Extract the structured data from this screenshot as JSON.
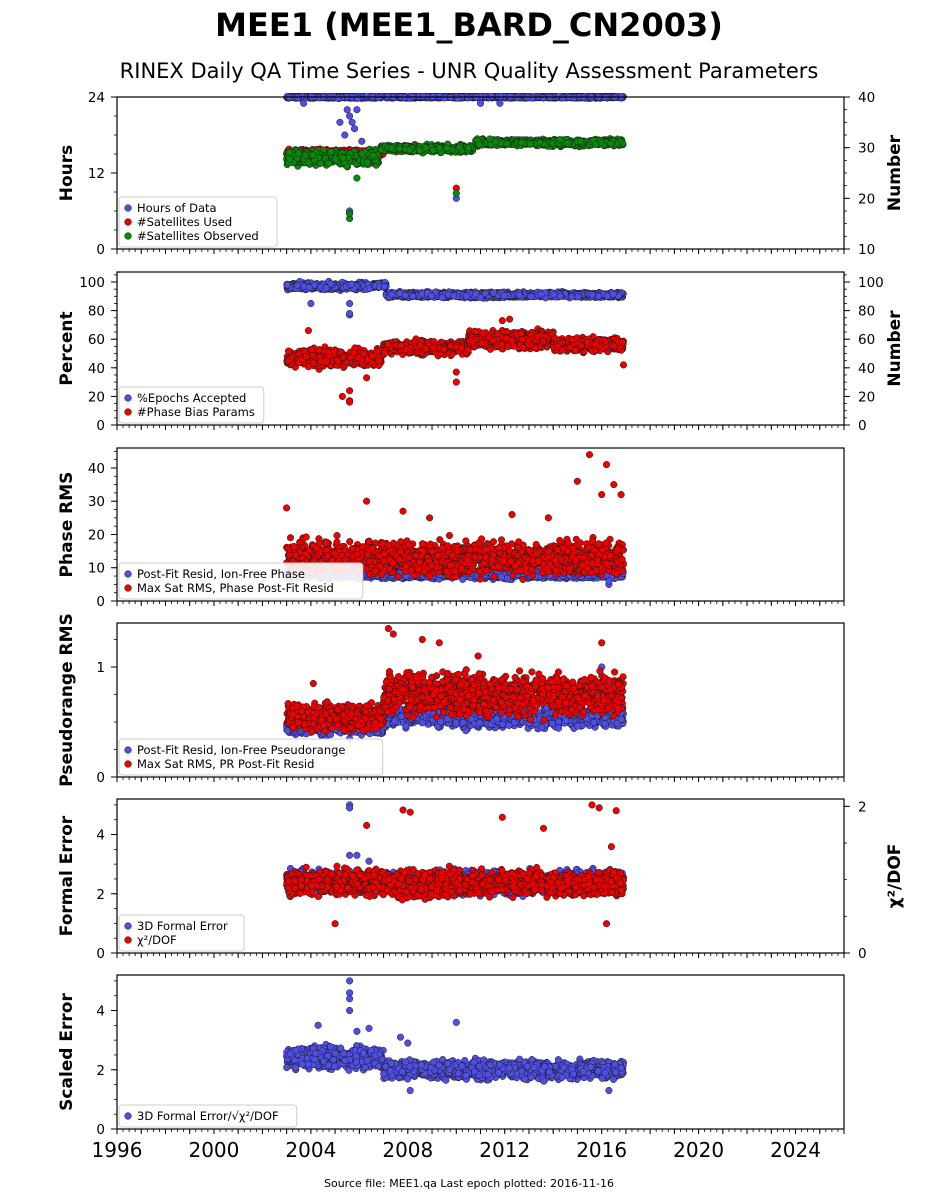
{
  "title": "MEE1 (MEE1_BARD_CN2003)",
  "subtitle": "RINEX Daily QA Time Series - UNR Quality Assessment Parameters",
  "footer": "Source file: MEE1.qa Last epoch plotted: 2016-11-16",
  "colors": {
    "blue": "#4f4fe8",
    "red": "#ee0000",
    "green": "#078a07",
    "edge": "#1a1a1a"
  },
  "x_axis": {
    "range": [
      1996,
      2026
    ],
    "ticks": [
      1996,
      2000,
      2004,
      2008,
      2012,
      2016,
      2020,
      2024
    ],
    "tick_labels": [
      "1996",
      "2000",
      "2004",
      "2008",
      "2012",
      "2016",
      "2020",
      "2024"
    ]
  },
  "chart_data": [
    {
      "type": "scatter",
      "ylabel": "Hours",
      "ylabel_right": "Number",
      "ylim": [
        0,
        24
      ],
      "yticks": [
        0,
        12,
        24
      ],
      "ylim_right": [
        10,
        40
      ],
      "yticks_right": [
        10,
        20,
        30,
        40
      ],
      "legend_loc": "lower-left",
      "series": [
        {
          "name": "Hours of Data",
          "color": "blue",
          "axis": "left",
          "segments": [
            {
              "x": [
                2003.0,
                2007.0
              ],
              "y": 24,
              "noise": 0.15
            },
            {
              "x": [
                2007.1,
                2016.9
              ],
              "y": 24,
              "noise": 0.15
            }
          ],
          "outliers": [
            [
              2005.5,
              22
            ],
            [
              2005.6,
              21
            ],
            [
              2005.4,
              18
            ],
            [
              2005.7,
              20
            ],
            [
              2005.6,
              6
            ],
            [
              2005.9,
              22
            ],
            [
              2005.8,
              19
            ],
            [
              2005.2,
              20
            ],
            [
              2006.1,
              17
            ],
            [
              2010.0,
              8
            ],
            [
              2011.0,
              23
            ],
            [
              2011.8,
              23
            ],
            [
              2003.7,
              23
            ]
          ]
        },
        {
          "name": "#Satellites Used",
          "color": "red",
          "axis": "right",
          "segments": [
            {
              "x": [
                2003.0,
                2007.0
              ],
              "y": 29,
              "noise": 0.5
            }
          ],
          "outliers": [
            [
              2005.6,
              17
            ],
            [
              2010.0,
              22
            ]
          ]
        },
        {
          "name": "#Satellites Observed",
          "color": "green",
          "axis": "right",
          "segments": [
            {
              "x": [
                2003.0,
                2006.8
              ],
              "y": 28,
              "noise": 1.2
            },
            {
              "x": [
                2006.9,
                2010.7
              ],
              "y": 29.8,
              "noise": 0.6
            },
            {
              "x": [
                2010.8,
                2016.9
              ],
              "y": 31,
              "noise": 0.5
            }
          ],
          "outliers": [
            [
              2005.6,
              16
            ],
            [
              2005.6,
              17
            ],
            [
              2010.0,
              21
            ],
            [
              2005.9,
              24
            ]
          ]
        }
      ]
    },
    {
      "type": "scatter",
      "ylabel": "Percent",
      "ylabel_right": "Number",
      "ylim": [
        0,
        107
      ],
      "yticks": [
        0,
        20,
        40,
        60,
        80,
        100
      ],
      "ylim_right": [
        0,
        107
      ],
      "yticks_right": [
        0,
        20,
        40,
        60,
        80,
        100
      ],
      "legend_loc": "lower-left",
      "series": [
        {
          "name": "%Epochs Accepted",
          "color": "blue",
          "segments": [
            {
              "x": [
                2003.0,
                2006.6
              ],
              "y": 97,
              "noise": 2.0
            },
            {
              "x": [
                2006.6,
                2007.1
              ],
              "y": 98,
              "noise": 1.5
            },
            {
              "x": [
                2007.1,
                2016.9
              ],
              "y": 91,
              "noise": 1.5
            }
          ],
          "outliers": [
            [
              2005.6,
              77
            ],
            [
              2005.6,
              78
            ],
            [
              2005.6,
              85
            ],
            [
              2004.0,
              85
            ]
          ]
        },
        {
          "name": "#Phase Bias Params",
          "color": "red",
          "segments": [
            {
              "x": [
                2003.0,
                2006.9
              ],
              "y": 47,
              "noise": 5.0
            },
            {
              "x": [
                2007.0,
                2010.5
              ],
              "y": 54,
              "noise": 4.0
            },
            {
              "x": [
                2010.5,
                2014.0
              ],
              "y": 60,
              "noise": 5.0
            },
            {
              "x": [
                2014.0,
                2016.9
              ],
              "y": 56,
              "noise": 4.0
            }
          ],
          "outliers": [
            [
              2005.6,
              17
            ],
            [
              2005.6,
              16
            ],
            [
              2005.6,
              24
            ],
            [
              2010.0,
              30
            ],
            [
              2010.0,
              37
            ],
            [
              2003.9,
              66
            ],
            [
              2011.9,
              73
            ],
            [
              2012.2,
              74
            ],
            [
              2016.9,
              42
            ],
            [
              2006.3,
              33
            ],
            [
              2005.3,
              20
            ]
          ]
        }
      ]
    },
    {
      "type": "scatter",
      "ylabel": "Phase RMS",
      "ylim": [
        0,
        46
      ],
      "yticks": [
        0,
        10,
        20,
        30,
        40
      ],
      "legend_loc": "lower-left",
      "series": [
        {
          "name": "Post-Fit Resid, Ion-Free Phase",
          "color": "blue",
          "segments": [
            {
              "x": [
                2003.0,
                2016.9
              ],
              "y": 8,
              "noise": 1.0
            }
          ],
          "outliers": [
            [
              2016.3,
              5
            ],
            [
              2016.3,
              6
            ]
          ]
        },
        {
          "name": "Max Sat RMS, Phase Post-Fit Resid",
          "color": "red",
          "segments": [
            {
              "x": [
                2003.0,
                2016.9
              ],
              "y": 13,
              "noise": 4.0
            }
          ],
          "outliers": [
            [
              2003.0,
              28
            ],
            [
              2006.3,
              30
            ],
            [
              2007.8,
              27
            ],
            [
              2008.9,
              25
            ],
            [
              2015.5,
              44
            ],
            [
              2016.2,
              41
            ],
            [
              2015.0,
              36
            ],
            [
              2016.5,
              35
            ],
            [
              2016.8,
              32
            ],
            [
              2016.0,
              32
            ],
            [
              2013.8,
              25
            ],
            [
              2012.3,
              26
            ]
          ]
        }
      ]
    },
    {
      "type": "scatter",
      "ylabel": "Pseudorange RMS",
      "ylim": [
        0,
        1.4
      ],
      "yticks": [
        0,
        1
      ],
      "yticks_labels": [
        "0",
        "1"
      ],
      "legend_loc": "lower-left",
      "series": [
        {
          "name": "Post-Fit Resid, Ion-Free Pseudorange",
          "color": "blue",
          "segments": [
            {
              "x": [
                2003.0,
                2007.0
              ],
              "y": 0.45,
              "noise": 0.05
            },
            {
              "x": [
                2007.0,
                2016.9
              ],
              "y": 0.55,
              "noise": 0.08
            }
          ],
          "outliers": [
            [
              2007.5,
              0.74
            ],
            [
              2016.0,
              1.0
            ],
            [
              2005.6,
              0.35
            ]
          ]
        },
        {
          "name": "Max Sat RMS, PR Post-Fit Resid",
          "color": "red",
          "segments": [
            {
              "x": [
                2003.0,
                2007.0
              ],
              "y": 0.55,
              "noise": 0.1
            },
            {
              "x": [
                2007.0,
                2016.9
              ],
              "y": 0.75,
              "noise": 0.15
            }
          ],
          "outliers": [
            [
              2007.2,
              1.35
            ],
            [
              2007.4,
              1.3
            ],
            [
              2008.6,
              1.25
            ],
            [
              2009.3,
              1.22
            ],
            [
              2016.0,
              1.22
            ],
            [
              2010.9,
              1.1
            ],
            [
              2004.1,
              0.85
            ]
          ]
        }
      ]
    },
    {
      "type": "scatter",
      "ylabel": "Formal Error",
      "ylabel_right": "χ²/DOF",
      "ylim": [
        0,
        5.2
      ],
      "yticks": [
        0,
        2,
        4
      ],
      "ylim_right": [
        0,
        2.1
      ],
      "yticks_right": [
        0,
        2
      ],
      "legend_loc": "lower-left",
      "series": [
        {
          "name": "3D Formal Error",
          "color": "blue",
          "axis": "left",
          "segments": [
            {
              "x": [
                2003.0,
                2016.9
              ],
              "y": 2.4,
              "noise": 0.3
            }
          ],
          "outliers": [
            [
              2005.6,
              5.0
            ],
            [
              2005.6,
              4.9
            ],
            [
              2005.6,
              3.3
            ],
            [
              2005.9,
              3.3
            ],
            [
              2006.4,
              3.1
            ]
          ]
        },
        {
          "name": "χ²/DOF",
          "color": "red",
          "axis": "right",
          "segments": [
            {
              "x": [
                2003.0,
                2016.9
              ],
              "y": 0.95,
              "noise": 0.14
            }
          ],
          "outliers": [
            [
              2006.3,
              1.74
            ],
            [
              2007.8,
              1.95
            ],
            [
              2008.1,
              1.92
            ],
            [
              2011.9,
              1.85
            ],
            [
              2013.6,
              1.7
            ],
            [
              2015.6,
              2.02
            ],
            [
              2015.9,
              1.98
            ],
            [
              2016.6,
              1.94
            ],
            [
              2016.4,
              1.45
            ],
            [
              2005.0,
              0.4
            ],
            [
              2016.2,
              0.4
            ]
          ]
        }
      ]
    },
    {
      "type": "scatter",
      "ylabel": "Scaled Error",
      "ylim": [
        0,
        5.2
      ],
      "yticks": [
        0,
        2,
        4
      ],
      "legend_loc": "lower-left",
      "series": [
        {
          "name": "3D Formal Error/√χ²/DOF",
          "color": "blue",
          "segments": [
            {
              "x": [
                2003.0,
                2007.0
              ],
              "y": 2.4,
              "noise": 0.3
            },
            {
              "x": [
                2007.0,
                2016.9
              ],
              "y": 2.0,
              "noise": 0.25
            }
          ],
          "outliers": [
            [
              2005.6,
              5.0
            ],
            [
              2005.6,
              4.6
            ],
            [
              2005.6,
              4.4
            ],
            [
              2005.6,
              4.0
            ],
            [
              2005.9,
              3.3
            ],
            [
              2006.4,
              3.4
            ],
            [
              2004.3,
              3.5
            ],
            [
              2010.0,
              3.6
            ],
            [
              2007.7,
              3.1
            ],
            [
              2008.0,
              2.9
            ],
            [
              2016.3,
              1.3
            ],
            [
              2008.1,
              1.3
            ]
          ]
        }
      ]
    }
  ]
}
